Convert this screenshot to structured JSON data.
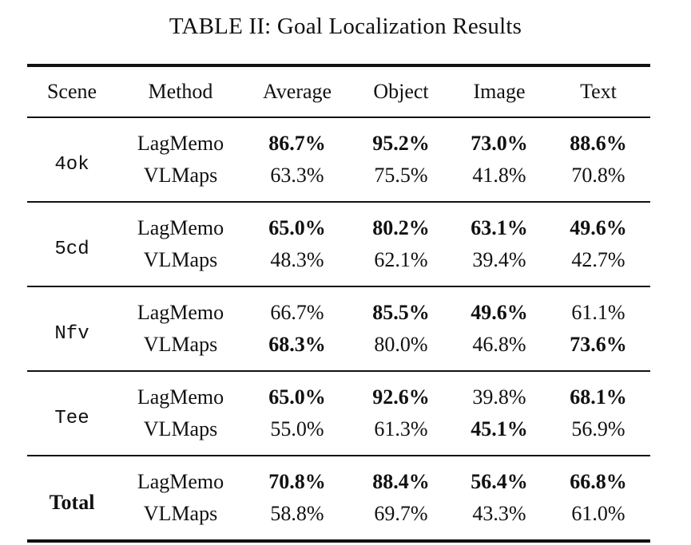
{
  "caption": "TABLE II: Goal Localization Results",
  "headers": [
    "Scene",
    "Method",
    "Average",
    "Object",
    "Image",
    "Text"
  ],
  "groups": [
    {
      "scene": "4ok",
      "rows": [
        {
          "method": "LagMemo",
          "average": "86.7%",
          "object": "95.2%",
          "image": "73.0%",
          "text": "88.6%"
        },
        {
          "method": "VLMaps",
          "average": "63.3%",
          "object": "75.5%",
          "image": "41.8%",
          "text": "70.8%"
        }
      ]
    },
    {
      "scene": "5cd",
      "rows": [
        {
          "method": "LagMemo",
          "average": "65.0%",
          "object": "80.2%",
          "image": "63.1%",
          "text": "49.6%"
        },
        {
          "method": "VLMaps",
          "average": "48.3%",
          "object": "62.1%",
          "image": "39.4%",
          "text": "42.7%"
        }
      ]
    },
    {
      "scene": "Nfv",
      "rows": [
        {
          "method": "LagMemo",
          "average": "66.7%",
          "object": "85.5%",
          "image": "49.6%",
          "text": "61.1%"
        },
        {
          "method": "VLMaps",
          "average": "68.3%",
          "object": "80.0%",
          "image": "46.8%",
          "text": "73.6%"
        }
      ]
    },
    {
      "scene": "Tee",
      "rows": [
        {
          "method": "LagMemo",
          "average": "65.0%",
          "object": "92.6%",
          "image": "39.8%",
          "text": "68.1%"
        },
        {
          "method": "VLMaps",
          "average": "55.0%",
          "object": "61.3%",
          "image": "45.1%",
          "text": "56.9%"
        }
      ]
    },
    {
      "scene": "Total",
      "rows": [
        {
          "method": "LagMemo",
          "average": "70.8%",
          "object": "88.4%",
          "image": "56.4%",
          "text": "66.8%"
        },
        {
          "method": "VLMaps",
          "average": "58.8%",
          "object": "69.7%",
          "image": "43.3%",
          "text": "61.0%"
        }
      ]
    }
  ]
}
